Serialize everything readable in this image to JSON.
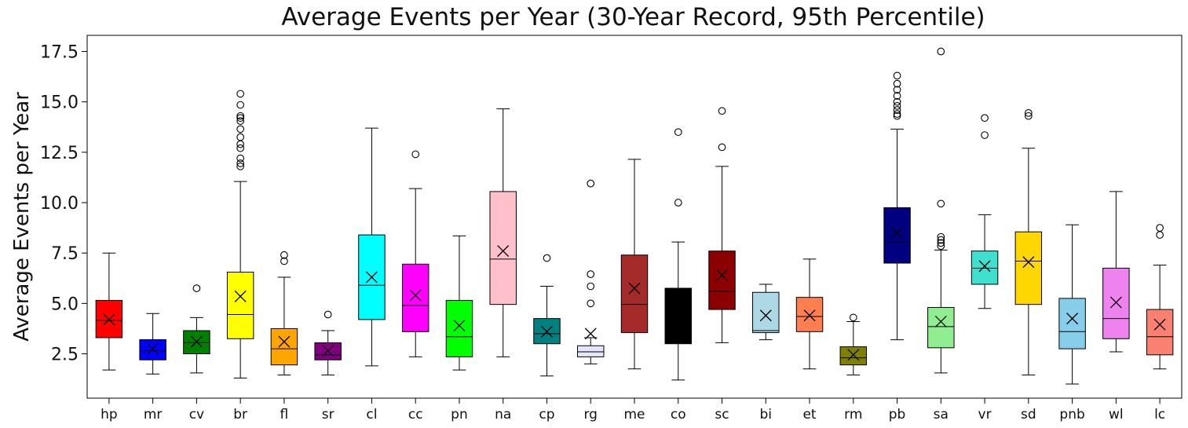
{
  "chart_data": {
    "type": "box",
    "title": "Average Events per Year (30-Year Record, 95th Percentile)",
    "ylabel": "Average Events per Year",
    "xlabel": "",
    "ylim": [
      0.3,
      18.3
    ],
    "yticks": [
      2.5,
      5.0,
      7.5,
      10.0,
      12.5,
      15.0,
      17.5
    ],
    "ytick_labels": [
      "2.5",
      "5.0",
      "7.5",
      "10.0",
      "12.5",
      "15.0",
      "17.5"
    ],
    "grid": false,
    "mean_marker": "x",
    "categories": [
      "hp",
      "mr",
      "cv",
      "br",
      "fl",
      "sr",
      "cl",
      "cc",
      "pn",
      "na",
      "cp",
      "rg",
      "me",
      "co",
      "sc",
      "bi",
      "et",
      "rm",
      "pb",
      "sa",
      "vr",
      "sd",
      "pnb",
      "wl",
      "lc"
    ],
    "boxes": [
      {
        "name": "hp",
        "color": "#ff0000",
        "whislo": 1.7,
        "q1": 3.3,
        "med": 4.15,
        "q3": 5.15,
        "whishi": 7.5,
        "mean": 4.2,
        "fliers": []
      },
      {
        "name": "mr",
        "color": "#0000ff",
        "whislo": 1.5,
        "q1": 2.2,
        "med": 2.65,
        "q3": 3.2,
        "whishi": 4.5,
        "mean": 2.75,
        "fliers": []
      },
      {
        "name": "cv",
        "color": "#008000",
        "whislo": 1.55,
        "q1": 2.5,
        "med": 3.05,
        "q3": 3.65,
        "whishi": 4.3,
        "mean": 3.1,
        "fliers": [
          5.75
        ]
      },
      {
        "name": "br",
        "color": "#ffff00",
        "whislo": 1.3,
        "q1": 3.25,
        "med": 4.45,
        "q3": 6.55,
        "whishi": 11.05,
        "mean": 5.35,
        "fliers": [
          11.8,
          11.95,
          12.2,
          12.7,
          12.9,
          13.25,
          13.65,
          14.05,
          14.2,
          14.3,
          14.85,
          15.4
        ]
      },
      {
        "name": "fl",
        "color": "#ffa500",
        "whislo": 1.45,
        "q1": 1.95,
        "med": 2.75,
        "q3": 3.75,
        "whishi": 6.3,
        "mean": 3.1,
        "fliers": [
          7.1,
          7.4
        ]
      },
      {
        "name": "sr",
        "color": "#800080",
        "whislo": 1.45,
        "q1": 2.2,
        "med": 2.45,
        "q3": 3.05,
        "whishi": 3.65,
        "mean": 2.65,
        "fliers": [
          4.45
        ]
      },
      {
        "name": "cl",
        "color": "#00ffff",
        "whislo": 1.9,
        "q1": 4.2,
        "med": 5.9,
        "q3": 8.4,
        "whishi": 13.7,
        "mean": 6.3,
        "fliers": []
      },
      {
        "name": "cc",
        "color": "#ff00ff",
        "whislo": 2.35,
        "q1": 3.6,
        "med": 4.9,
        "q3": 6.95,
        "whishi": 10.7,
        "mean": 5.4,
        "fliers": [
          12.4
        ]
      },
      {
        "name": "pn",
        "color": "#00ff00",
        "whislo": 1.7,
        "q1": 2.35,
        "med": 3.35,
        "q3": 5.15,
        "whishi": 8.35,
        "mean": 3.9,
        "fliers": []
      },
      {
        "name": "na",
        "color": "#ffc0cb",
        "whislo": 2.35,
        "q1": 4.95,
        "med": 7.2,
        "q3": 10.55,
        "whishi": 14.65,
        "mean": 7.6,
        "fliers": []
      },
      {
        "name": "cp",
        "color": "#008080",
        "whislo": 1.4,
        "q1": 3.0,
        "med": 3.5,
        "q3": 4.25,
        "whishi": 5.85,
        "mean": 3.6,
        "fliers": [
          7.25
        ]
      },
      {
        "name": "rg",
        "color": "#e6e6fa",
        "whislo": 2.0,
        "q1": 2.35,
        "med": 2.6,
        "q3": 2.9,
        "whishi": 3.3,
        "mean": 3.5,
        "fliers": [
          5.0,
          5.85,
          6.45,
          10.95
        ]
      },
      {
        "name": "me",
        "color": "#a52a2a",
        "whislo": 1.75,
        "q1": 3.55,
        "med": 4.95,
        "q3": 7.4,
        "whishi": 12.15,
        "mean": 5.75,
        "fliers": []
      },
      {
        "name": "co",
        "color": "#000000",
        "whislo": 1.2,
        "q1": 3.0,
        "med": 5.75,
        "q3": 5.75,
        "whishi": 8.05,
        "mean": 4.5,
        "fliers": [
          10.0,
          13.5
        ]
      },
      {
        "name": "sc",
        "color": "#8b0000",
        "whislo": 3.05,
        "q1": 4.7,
        "med": 5.6,
        "q3": 7.6,
        "whishi": 11.8,
        "mean": 6.4,
        "fliers": [
          12.75,
          14.55
        ]
      },
      {
        "name": "bi",
        "color": "#add8e6",
        "whislo": 3.2,
        "q1": 3.55,
        "med": 3.65,
        "q3": 5.55,
        "whishi": 5.95,
        "mean": 4.4,
        "fliers": []
      },
      {
        "name": "et",
        "color": "#ff7f50",
        "whislo": 1.75,
        "q1": 3.6,
        "med": 4.35,
        "q3": 5.3,
        "whishi": 7.2,
        "mean": 4.4,
        "fliers": []
      },
      {
        "name": "rm",
        "color": "#808000",
        "whislo": 1.45,
        "q1": 1.95,
        "med": 2.3,
        "q3": 2.85,
        "whishi": 4.1,
        "mean": 2.45,
        "fliers": [
          4.3
        ]
      },
      {
        "name": "pb",
        "color": "#000080",
        "whislo": 3.2,
        "q1": 7.0,
        "med": 8.05,
        "q3": 9.75,
        "whishi": 13.65,
        "mean": 8.5,
        "fliers": [
          14.3,
          14.4,
          14.6,
          14.8,
          15.0,
          15.3,
          15.6,
          15.9,
          16.3
        ]
      },
      {
        "name": "sa",
        "color": "#90ee90",
        "whislo": 1.55,
        "q1": 2.8,
        "med": 3.85,
        "q3": 4.8,
        "whishi": 7.65,
        "mean": 4.1,
        "fliers": [
          7.85,
          8.0,
          8.15,
          8.3,
          9.95,
          17.5
        ]
      },
      {
        "name": "vr",
        "color": "#40e0d0",
        "whislo": 4.75,
        "q1": 5.95,
        "med": 6.75,
        "q3": 7.6,
        "whishi": 9.4,
        "mean": 6.85,
        "fliers": [
          13.35,
          14.2
        ]
      },
      {
        "name": "sd",
        "color": "#ffd700",
        "whislo": 1.45,
        "q1": 4.95,
        "med": 7.1,
        "q3": 8.55,
        "whishi": 12.7,
        "mean": 7.05,
        "fliers": [
          14.3,
          14.45
        ]
      },
      {
        "name": "pnb",
        "color": "#87ceeb",
        "whislo": 1.0,
        "q1": 2.75,
        "med": 3.6,
        "q3": 5.25,
        "whishi": 8.9,
        "mean": 4.25,
        "fliers": []
      },
      {
        "name": "wl",
        "color": "#ee82ee",
        "whislo": 2.6,
        "q1": 3.25,
        "med": 4.25,
        "q3": 6.75,
        "whishi": 10.55,
        "mean": 5.05,
        "fliers": []
      },
      {
        "name": "lc",
        "color": "#fa8072",
        "whislo": 1.75,
        "q1": 2.45,
        "med": 3.35,
        "q3": 4.7,
        "whishi": 6.9,
        "mean": 3.95,
        "fliers": [
          8.4,
          8.75
        ]
      }
    ]
  }
}
